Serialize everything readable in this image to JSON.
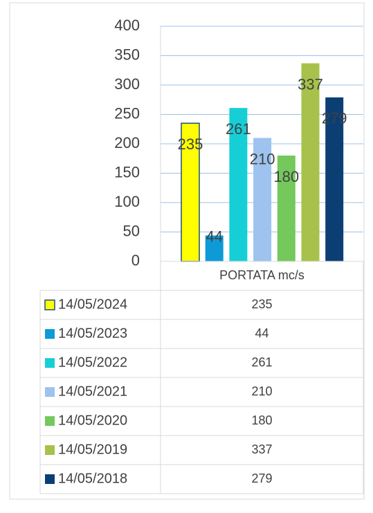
{
  "chart_data": {
    "type": "bar",
    "categories": [
      "PORTATA mc/s"
    ],
    "series": [
      {
        "name": "14/05/2024",
        "color": "#ffff00",
        "outline": "#1f4e79",
        "values": [
          235
        ]
      },
      {
        "name": "14/05/2023",
        "color": "#0e9ad7",
        "values": [
          44
        ]
      },
      {
        "name": "14/05/2022",
        "color": "#16cfd6",
        "values": [
          261
        ]
      },
      {
        "name": "14/05/2021",
        "color": "#9dc3ee",
        "values": [
          210
        ]
      },
      {
        "name": "14/05/2020",
        "color": "#74c85c",
        "values": [
          180
        ]
      },
      {
        "name": "14/05/2019",
        "color": "#a6c24a",
        "values": [
          337
        ]
      },
      {
        "name": "14/05/2018",
        "color": "#0b3f74",
        "values": [
          279
        ]
      }
    ],
    "ylim": [
      0,
      400
    ],
    "yticks": [
      0,
      50,
      100,
      150,
      200,
      250,
      300,
      350,
      400
    ],
    "grid": true
  }
}
